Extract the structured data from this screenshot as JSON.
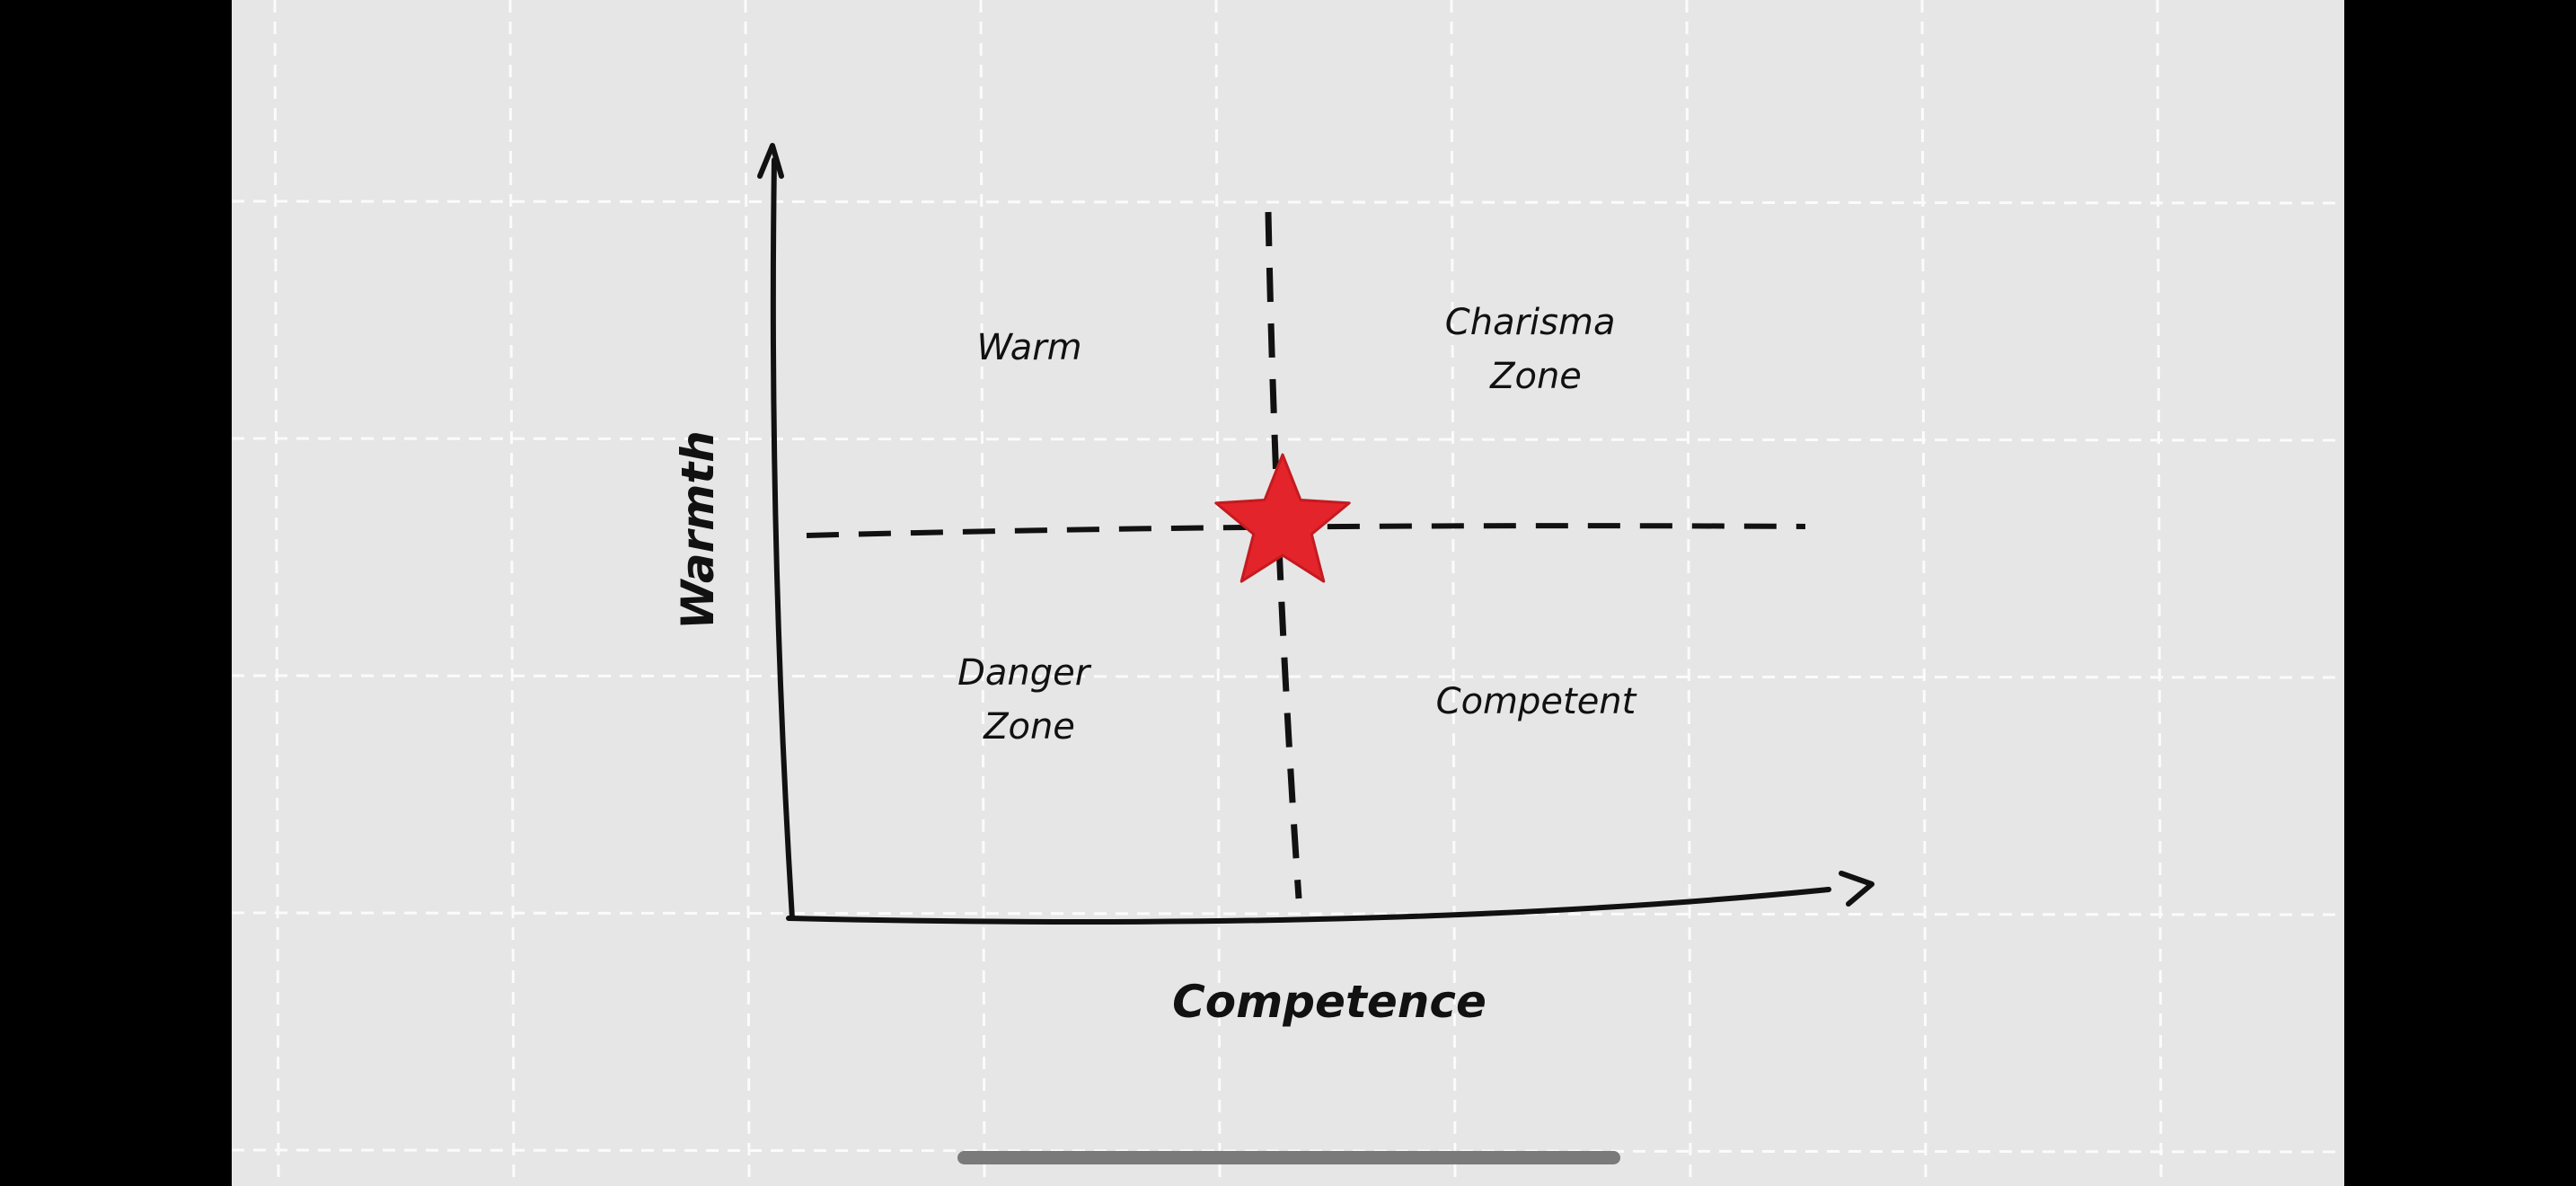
{
  "axes": {
    "y_label": "Warmth",
    "x_label": "Competence"
  },
  "quadrants": {
    "top_left": {
      "lines": [
        "Warm"
      ]
    },
    "top_right": {
      "lines": [
        "Charisma",
        "Zone"
      ]
    },
    "bottom_left": {
      "lines": [
        "Danger",
        "Zone"
      ]
    },
    "bottom_right": {
      "lines": [
        "Competent"
      ]
    }
  },
  "marker": {
    "icon": "star-icon",
    "color": "#e3242b"
  },
  "colors": {
    "board": "#e6e6e6",
    "grid": "#ffffff",
    "ink": "#111111"
  }
}
